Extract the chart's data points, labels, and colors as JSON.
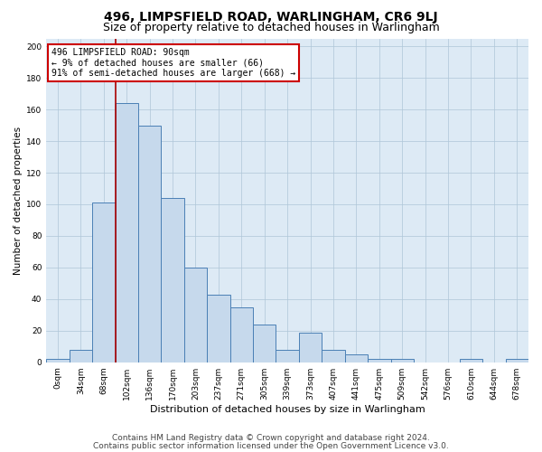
{
  "title": "496, LIMPSFIELD ROAD, WARLINGHAM, CR6 9LJ",
  "subtitle": "Size of property relative to detached houses in Warlingham",
  "xlabel": "Distribution of detached houses by size in Warlingham",
  "ylabel": "Number of detached properties",
  "bar_values": [
    2,
    8,
    101,
    164,
    150,
    104,
    60,
    43,
    35,
    24,
    8,
    19,
    8,
    5,
    2,
    2,
    0,
    0,
    2,
    0,
    2
  ],
  "bar_labels": [
    "0sqm",
    "34sqm",
    "68sqm",
    "102sqm",
    "136sqm",
    "170sqm",
    "203sqm",
    "237sqm",
    "271sqm",
    "305sqm",
    "339sqm",
    "373sqm",
    "407sqm",
    "441sqm",
    "475sqm",
    "509sqm",
    "542sqm",
    "576sqm",
    "610sqm",
    "644sqm",
    "678sqm"
  ],
  "bar_color": "#c6d9ec",
  "bar_edge_color": "#4a7fb5",
  "bar_edge_width": 0.7,
  "property_line_x": 2.5,
  "property_line_color": "#aa0000",
  "ylim": [
    0,
    205
  ],
  "yticks": [
    0,
    20,
    40,
    60,
    80,
    100,
    120,
    140,
    160,
    180,
    200
  ],
  "annotation_text": "496 LIMPSFIELD ROAD: 90sqm\n← 9% of detached houses are smaller (66)\n91% of semi-detached houses are larger (668) →",
  "annotation_box_color": "#ffffff",
  "annotation_box_edge": "#cc0000",
  "footer_line1": "Contains HM Land Registry data © Crown copyright and database right 2024.",
  "footer_line2": "Contains public sector information licensed under the Open Government Licence v3.0.",
  "grid_color": "#aec6d8",
  "plot_background": "#ddeaf5",
  "title_fontsize": 10,
  "subtitle_fontsize": 9,
  "xlabel_fontsize": 8,
  "ylabel_fontsize": 7.5,
  "tick_fontsize": 6.5,
  "footer_fontsize": 6.5,
  "annotation_fontsize": 7
}
